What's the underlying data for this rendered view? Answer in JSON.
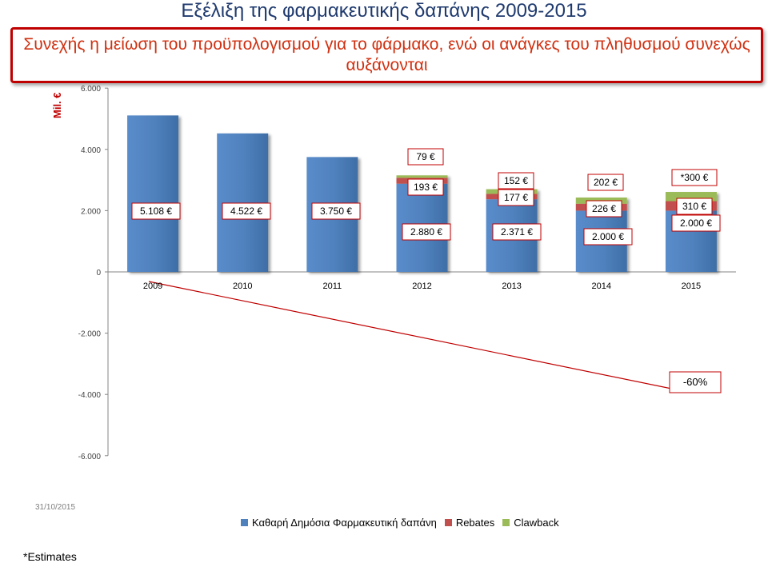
{
  "title": "Εξέλιξη της φαρμακευτικής δαπάνης 2009-2015",
  "subtitle": "Συνεχής η μείωση του προϋπολογισμού για το φάρμακο, ενώ οι ανάγκες του πληθυσμού συνεχώς αυξάνονται",
  "ylabel": "Mil. €",
  "footer_date": "31/10/2015",
  "footnote": "*Estimates",
  "colors": {
    "net": "#4f81bd",
    "rebates": "#c0504d",
    "clawback": "#9bbb59",
    "line": "#c00000",
    "title": "#1f3a6e",
    "subtitle": "#d03010"
  },
  "chart_data": {
    "type": "bar",
    "stacked": true,
    "categories": [
      "2009",
      "2010",
      "2011",
      "2012",
      "2013",
      "2014",
      "2015"
    ],
    "ylim": [
      -6000,
      6000
    ],
    "yticks": [
      {
        "value": 6000,
        "label": "6.000"
      },
      {
        "value": 4000,
        "label": "4.000"
      },
      {
        "value": 2000,
        "label": "2.000"
      },
      {
        "value": 0,
        "label": "0"
      },
      {
        "value": -2000,
        "label": "-2.000"
      },
      {
        "value": -4000,
        "label": "-4.000"
      },
      {
        "value": -6000,
        "label": "-6.000"
      }
    ],
    "series": [
      {
        "name": "Καθαρή Δημόσια Φαρμακευτική δαπάνη",
        "key": "net",
        "values": [
          5108,
          4522,
          3750,
          2880,
          2371,
          2000,
          2000
        ]
      },
      {
        "name": "Rebates",
        "key": "rebates",
        "values": [
          0,
          0,
          0,
          193,
          177,
          226,
          310
        ]
      },
      {
        "name": "Clawback",
        "key": "clawback",
        "values": [
          0,
          0,
          0,
          79,
          152,
          202,
          300
        ]
      }
    ],
    "value_labels": {
      "net": [
        "5.108 €",
        "4.522 €",
        "3.750 €",
        "2.880 €",
        "2.371 €",
        "2.000 €",
        "2.000 €"
      ],
      "rebates": [
        "",
        "",
        "",
        "193 €",
        "177 €",
        "226 €",
        "310 €"
      ],
      "clawback": [
        "",
        "",
        "",
        "79 €",
        "152 €",
        "202 €",
        "*300 €"
      ]
    },
    "change_line": {
      "from_category": "2009",
      "to_category": "2015",
      "values": [
        0,
        -60
      ],
      "label": "-60%"
    },
    "legend_position": "bottom"
  }
}
